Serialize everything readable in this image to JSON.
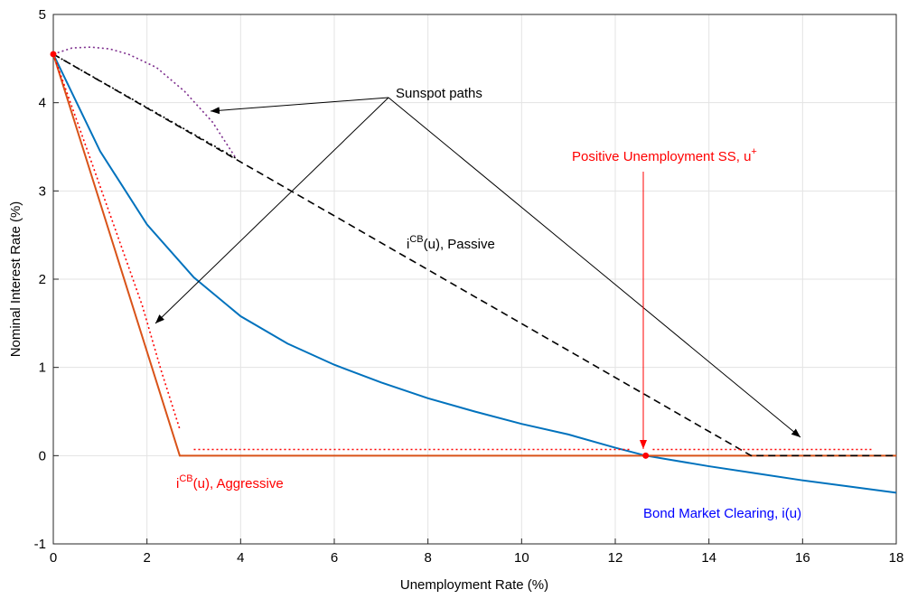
{
  "chart_data": {
    "type": "line",
    "xlabel": "Unemployment Rate (%)",
    "ylabel": "Nominal Interest Rate (%)",
    "xlim": [
      0,
      18
    ],
    "ylim": [
      -1,
      5
    ],
    "xticks": [
      0,
      2,
      4,
      6,
      8,
      10,
      12,
      14,
      16,
      18
    ],
    "yticks": [
      -1,
      0,
      1,
      2,
      3,
      4,
      5
    ],
    "grid": true,
    "series": [
      {
        "color": "#0072bd",
        "dash": "solid",
        "x": [
          0,
          1,
          2,
          3,
          4,
          5,
          6,
          7,
          8,
          9,
          10,
          11,
          12,
          12.65,
          14,
          15,
          16,
          17,
          18
        ],
        "values": [
          4.55,
          3.45,
          2.62,
          2.02,
          1.58,
          1.27,
          1.03,
          0.83,
          0.65,
          0.5,
          0.36,
          0.24,
          0.09,
          0,
          -0.12,
          -0.2,
          -0.28,
          -0.35,
          -0.42
        ]
      },
      {
        "color": "#d95319",
        "dash": "solid",
        "x": [
          0,
          2.7,
          18
        ],
        "values": [
          4.55,
          0,
          0
        ]
      },
      {
        "color": "#000000",
        "dash": "dashed",
        "x": [
          0,
          14.9,
          18
        ],
        "values": [
          4.55,
          0,
          0
        ]
      },
      {
        "color": "#7e2f8e",
        "dash": "dotted",
        "x": [
          0,
          0.4,
          0.8,
          1.2,
          1.6,
          2.2,
          2.8,
          3.4,
          3.9
        ],
        "values": [
          4.55,
          4.62,
          4.63,
          4.61,
          4.55,
          4.4,
          4.13,
          3.78,
          3.37
        ]
      },
      {
        "color": "#000000",
        "dash": "dotted",
        "x": [
          0,
          3.9
        ],
        "values": [
          4.55,
          3.37
        ]
      },
      {
        "color": "#ff0000",
        "dash": "dotted",
        "x": [
          0,
          0.9,
          1.4,
          1.9,
          2.3,
          2.7
        ],
        "values": [
          4.55,
          3.2,
          2.45,
          1.7,
          0.97,
          0.3
        ]
      },
      {
        "color": "#ff0000",
        "dash": "dotted",
        "x": [
          3,
          12.3
        ],
        "values": [
          0.07,
          0.07
        ]
      },
      {
        "color": "#ff0000",
        "dash": "dotted",
        "x": [
          12.8,
          17.5
        ],
        "values": [
          0.07,
          0.07
        ]
      }
    ],
    "points": {
      "color": "#ff0000",
      "x": [
        0,
        12.65
      ],
      "values": [
        4.55,
        0
      ]
    },
    "annotations": [
      {
        "parts": [
          "Sunspot paths"
        ],
        "color": "#000000"
      },
      {
        "parts": [
          "Positive Unemployment SS, u",
          "+"
        ],
        "color": "#ff0000"
      },
      {
        "parts": [
          "i",
          "CB",
          "(u), Passive"
        ],
        "color": "#000000"
      },
      {
        "parts": [
          "i",
          "CB",
          "(u), Aggressive"
        ],
        "color": "#ff0000"
      },
      {
        "parts": [
          "Bond Market Clearing, i(u)"
        ],
        "color": "#0000ff"
      }
    ]
  }
}
